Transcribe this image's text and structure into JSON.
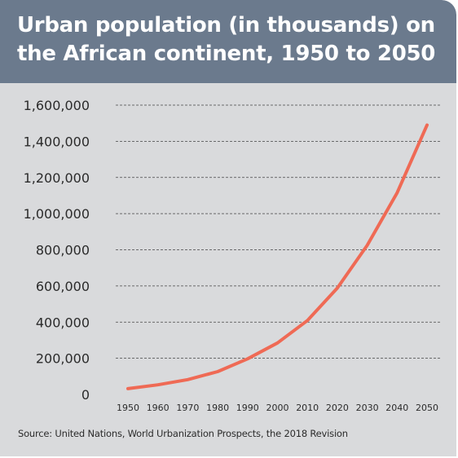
{
  "colors": {
    "header_background": "#6b7a8d",
    "panel_background": "#d9dadc",
    "line": "#ef6a55",
    "gridline": "#444444"
  },
  "chart_data": {
    "type": "line",
    "title": "Urban population (in thousands) on the African continent, 1950 to 2050",
    "x": [
      1950,
      1960,
      1970,
      1980,
      1990,
      2000,
      2010,
      2020,
      2030,
      2040,
      2050
    ],
    "series": [
      {
        "values": [
          32000,
          53000,
          82000,
          126000,
          197000,
          285000,
          409000,
          588000,
          825000,
          1115000,
          1490000
        ]
      }
    ],
    "y_ticks": [
      0,
      200000,
      400000,
      600000,
      800000,
      1000000,
      1200000,
      1400000,
      1600000
    ],
    "y_tick_labels": [
      "0",
      "200,000",
      "400,000",
      "600,000",
      "800,000",
      "1,000,000",
      "1,200,000",
      "1,400,000",
      "1,600,000"
    ],
    "x_tick_labels": [
      "1950",
      "1960",
      "1970",
      "1980",
      "1990",
      "2000",
      "2010",
      "2020",
      "2030",
      "2040",
      "2050"
    ],
    "ylim": [
      0,
      1600000
    ],
    "xlim": [
      1950,
      2050
    ],
    "grid": "horizontal dashed",
    "legend": "none"
  },
  "source": "Source: United Nations, World Urbanization Prospects, the 2018 Revision"
}
